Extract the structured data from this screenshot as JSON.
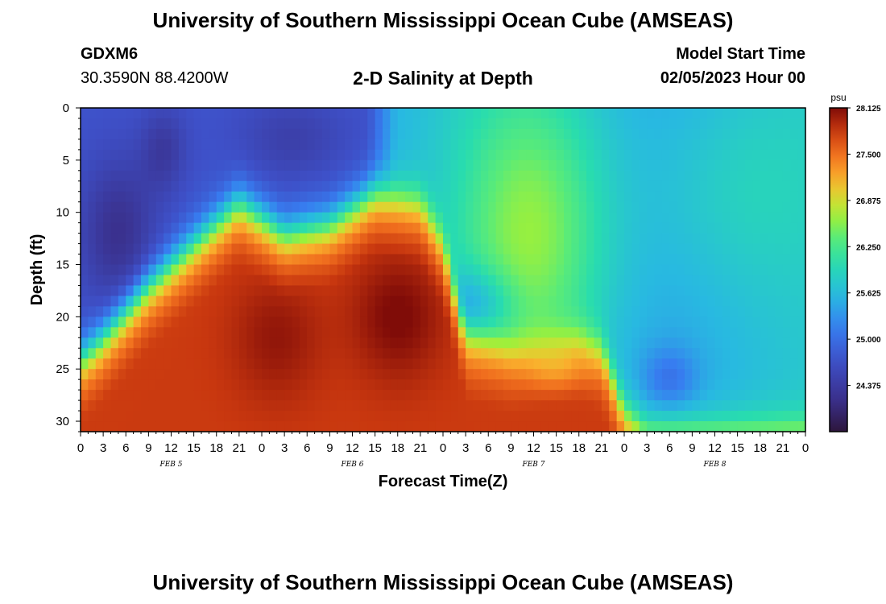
{
  "header": {
    "title": "University of Southern Mississippi Ocean Cube (AMSEAS)",
    "station_id": "GDXM6",
    "coordinates": "30.3590N  88.4200W",
    "subtitle": "2-D Salinity at Depth",
    "model_start_label": "Model Start Time",
    "model_start_value": "02/05/2023 Hour 00"
  },
  "footer": {
    "title": "University of Southern Mississippi Ocean Cube (AMSEAS)"
  },
  "chart_data": {
    "type": "heatmap",
    "title": "2-D Salinity at Depth",
    "xlabel": "Forecast Time(Z)",
    "ylabel": "Depth (ft)",
    "x_hours": [
      0,
      96
    ],
    "x_tick_labels": [
      "0",
      "3",
      "6",
      "9",
      "12",
      "15",
      "18",
      "21",
      "0",
      "3",
      "6",
      "9",
      "12",
      "15",
      "18",
      "21",
      "0",
      "3",
      "6",
      "9",
      "12",
      "15",
      "18",
      "21",
      "0",
      "3",
      "6",
      "9",
      "12",
      "15",
      "18",
      "21",
      "0"
    ],
    "x_date_labels": [
      {
        "label": "FEB 5",
        "hour": 12
      },
      {
        "label": "FEB 6",
        "hour": 36
      },
      {
        "label": "FEB 7",
        "hour": 60
      },
      {
        "label": "FEB 8",
        "hour": 84
      }
    ],
    "ylim": [
      0,
      31
    ],
    "y_ticks": [
      0,
      5,
      10,
      15,
      20,
      25,
      30
    ],
    "colorbar": {
      "unit": "psu",
      "min": 23.75,
      "max": 28.125,
      "tick_labels": [
        "28.125",
        "27.500",
        "26.875",
        "26.250",
        "25.625",
        "25.000",
        "24.375"
      ],
      "tick_values": [
        28.125,
        27.5,
        26.875,
        26.25,
        25.625,
        25.0,
        24.375
      ]
    },
    "field_description": {
      "surface_layer_psu": [
        24.1,
        25.8
      ],
      "bottom_layer_psu": [
        27.0,
        28.0
      ],
      "halocline_depth_ft_by_hour": [
        [
          0,
          24
        ],
        [
          3,
          22
        ],
        [
          9,
          17
        ],
        [
          18,
          11
        ],
        [
          21,
          9
        ],
        [
          27,
          12
        ],
        [
          33,
          11
        ],
        [
          39,
          8
        ],
        [
          45,
          9
        ],
        [
          48,
          13
        ],
        [
          51,
          22
        ],
        [
          57,
          23
        ],
        [
          66,
          22
        ],
        [
          69,
          23
        ],
        [
          72,
          29
        ],
        [
          75,
          31
        ],
        [
          96,
          31
        ]
      ]
    }
  }
}
